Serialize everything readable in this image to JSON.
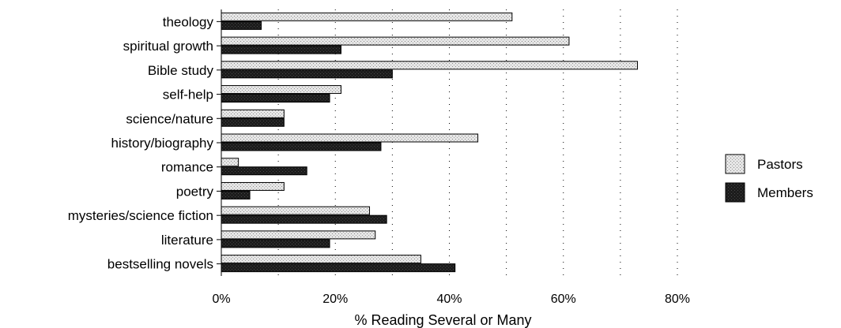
{
  "chart_data": {
    "type": "bar",
    "orientation": "horizontal",
    "categories": [
      "theology",
      "spiritual growth",
      "Bible study",
      "self-help",
      "science/nature",
      "history/biography",
      "romance",
      "poetry",
      "mysteries/science fiction",
      "literature",
      "bestselling novels"
    ],
    "series": [
      {
        "name": "Pastors",
        "values": [
          51,
          61,
          73,
          21,
          11,
          45,
          3,
          11,
          26,
          27,
          35
        ],
        "color": "#d8d8d8",
        "pattern": "light-dotted"
      },
      {
        "name": "Members",
        "values": [
          7,
          21,
          30,
          19,
          11,
          28,
          15,
          5,
          29,
          19,
          41
        ],
        "color": "#1a1a1a",
        "pattern": "dark-dotted"
      }
    ],
    "xlabel": "% Reading Several or Many",
    "ylabel": "",
    "xlim": [
      0,
      80
    ],
    "xticks": [
      0,
      20,
      40,
      60,
      80
    ],
    "xtick_labels": [
      "0%",
      "20%",
      "40%",
      "60%",
      "80%"
    ],
    "grid": "vertical dotted",
    "legend_position": "right"
  }
}
